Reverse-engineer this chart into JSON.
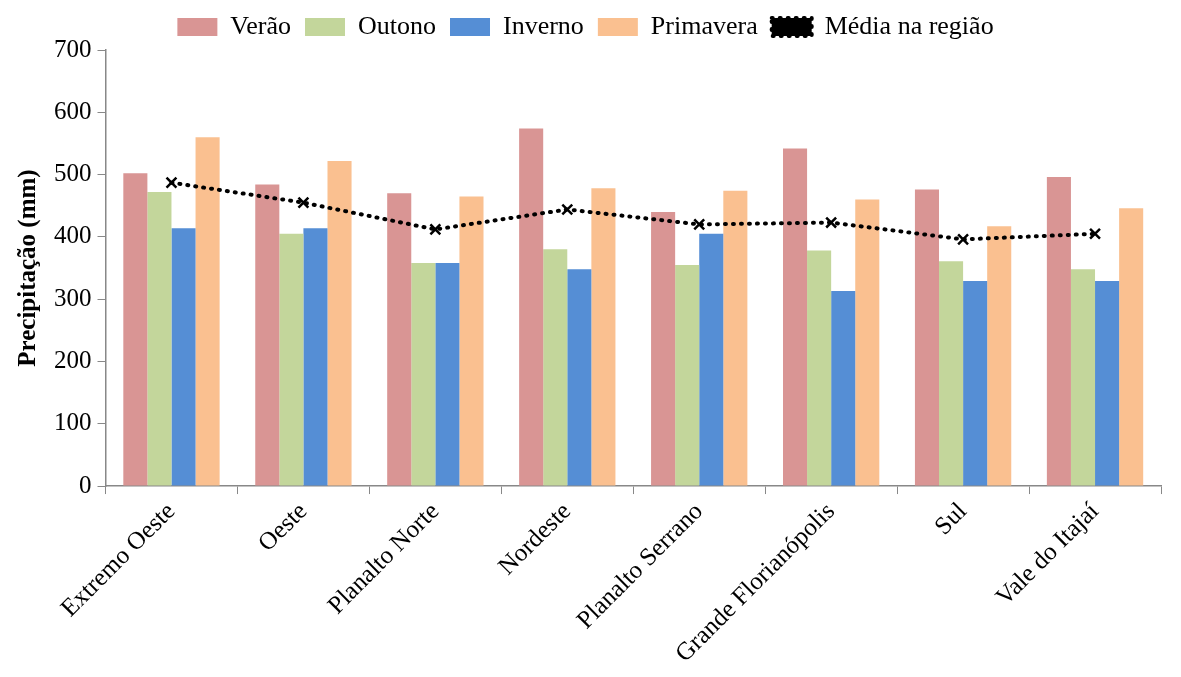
{
  "chart_data": {
    "type": "bar",
    "ylabel": "Precipitação (mm)",
    "categories": [
      "Extremo Oeste",
      "Oeste",
      "Planalto Norte",
      "Nordeste",
      "Planalto Serrano",
      "Grande Florianópolis",
      "Sul",
      "Vale do Itajaí"
    ],
    "series": [
      {
        "name": "Verão",
        "color": "#d99594",
        "values": [
          502,
          484,
          470,
          574,
          440,
          542,
          476,
          496
        ]
      },
      {
        "name": "Outono",
        "color": "#c3d69b",
        "values": [
          472,
          405,
          358,
          380,
          355,
          378,
          361,
          348
        ]
      },
      {
        "name": "Inverno",
        "color": "#558ed5",
        "values": [
          414,
          414,
          358,
          348,
          405,
          313,
          329,
          329
        ]
      },
      {
        "name": "Primavera",
        "color": "#fac090",
        "values": [
          560,
          522,
          465,
          478,
          474,
          460,
          417,
          446
        ]
      },
      {
        "name": "Média na região",
        "type": "line",
        "color": "#000000",
        "marker": "cross",
        "line_style": "dotted",
        "values": [
          487,
          455,
          412,
          444,
          420,
          423,
          396,
          405
        ]
      }
    ],
    "ylim": [
      0,
      700
    ],
    "yticks": [
      0,
      100,
      200,
      300,
      400,
      500,
      600,
      700
    ],
    "grid": false,
    "legend": "top"
  }
}
